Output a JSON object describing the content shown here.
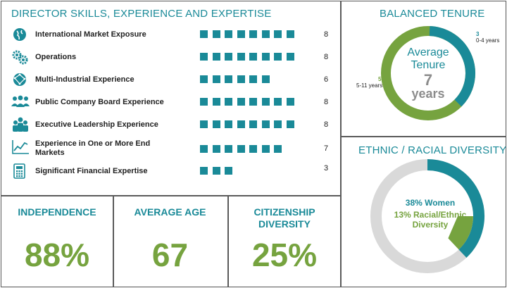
{
  "skills": {
    "title": "DIRECTOR SKILLS, EXPERIENCE AND EXPERTISE",
    "items": [
      {
        "label": "International Market Exposure",
        "value": 8,
        "icon": "globe-icon"
      },
      {
        "label": "Operations",
        "value": 8,
        "icon": "gears-icon"
      },
      {
        "label": "Multi-Industrial Experience",
        "value": 6,
        "icon": "globe-network-icon"
      },
      {
        "label": "Public Company Board Experience",
        "value": 8,
        "icon": "group-icon"
      },
      {
        "label": "Executive Leadership Experience",
        "value": 8,
        "icon": "leaders-icon"
      },
      {
        "label": "Experience in One or More End Markets",
        "value": 7,
        "icon": "line-chart-icon"
      },
      {
        "label": "Significant Financial Expertise",
        "value": 3,
        "icon": "calculator-icon"
      }
    ]
  },
  "tenure": {
    "title": "BALANCED TENURE",
    "center_line1": "Average",
    "center_line2": "Tenure",
    "center_value": "7",
    "center_unit": "years",
    "segments": [
      {
        "count": "3",
        "label": "0-4 years",
        "value": 3,
        "color": "#1a8a98"
      },
      {
        "count": "5",
        "label": "5-11 years",
        "value": 5,
        "color": "#76a33f"
      }
    ]
  },
  "diversity": {
    "title": "ETHNIC / RACIAL DIVERSITY",
    "women_label": "38% Women",
    "racial_label": "13% Racial/Ethnic Diversity",
    "women_pct": 38,
    "racial_pct": 13,
    "colors": {
      "women": "#1a8a98",
      "racial": "#76a33f",
      "other": "#d9d9d9"
    }
  },
  "stats": {
    "independence": {
      "label": "INDEPENDENCE",
      "value": "88%"
    },
    "age": {
      "label": "AVERAGE AGE",
      "value": "67"
    },
    "citizenship": {
      "label_line1": "CITIZENSHIP",
      "label_line2": "DIVERSITY",
      "value": "25%"
    }
  }
}
